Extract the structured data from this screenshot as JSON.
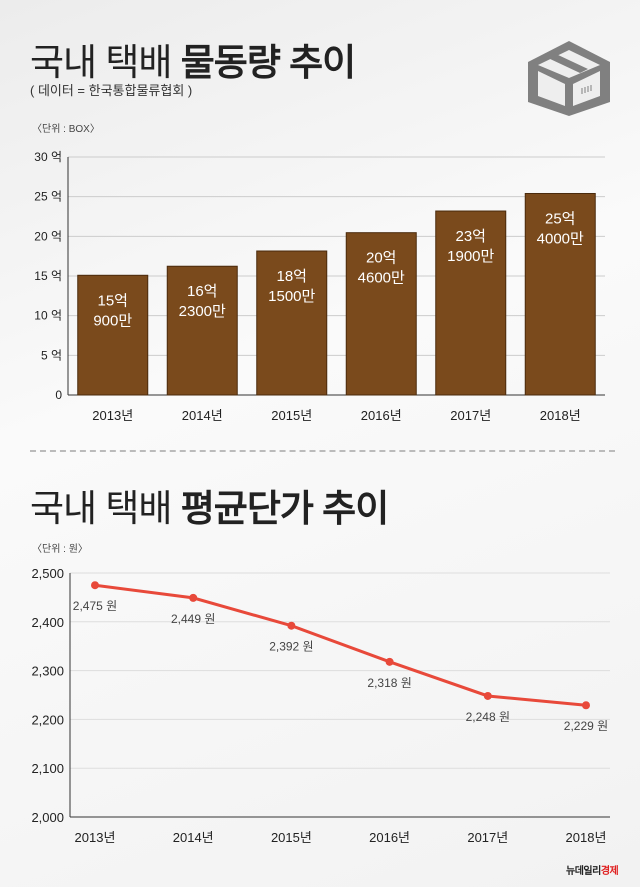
{
  "header": {
    "title_light": "국내 택배 ",
    "title_bold": "물동량 추이",
    "source": "( 데이터 = 한국통합물류협회 )"
  },
  "icon": "box-icon",
  "section2": {
    "title_light": "국내 택배 ",
    "title_bold": "평균단가 추이"
  },
  "logo": {
    "part1": "뉴데일리",
    "part2": "경제",
    "color2": "#e02020"
  },
  "chart_data": [
    {
      "type": "bar",
      "unit_label": "〈단위 : BOX〉",
      "categories": [
        "2013년",
        "2014년",
        "2015년",
        "2016년",
        "2017년",
        "2018년"
      ],
      "values": [
        1509000000,
        1623000000,
        1815000000,
        2046000000,
        2319000000,
        2540000000
      ],
      "data_labels": [
        [
          "15억",
          "900만"
        ],
        [
          "16억",
          "2300만"
        ],
        [
          "18억",
          "1500만"
        ],
        [
          "20억",
          "4600만"
        ],
        [
          "23억",
          "1900만"
        ],
        [
          "25억",
          "4000만"
        ]
      ],
      "yticks": [
        "0",
        "5 억",
        "10 억",
        "15 억",
        "20 억",
        "25 억",
        "30 억"
      ],
      "ylim": [
        0,
        3000000000
      ],
      "grid": true,
      "bar_color": "#7a4a1c"
    },
    {
      "type": "line",
      "unit_label": "〈단위 : 원〉",
      "categories": [
        "2013년",
        "2014년",
        "2015년",
        "2016년",
        "2017년",
        "2018년"
      ],
      "values": [
        2475,
        2449,
        2392,
        2318,
        2248,
        2229
      ],
      "data_labels": [
        "2,475 원",
        "2,449 원",
        "2,392 원",
        "2,318 원",
        "2,248 원",
        "2,229 원"
      ],
      "yticks": [
        "2,000",
        "2,100",
        "2,200",
        "2,300",
        "2,400",
        "2,500"
      ],
      "ylim": [
        2000,
        2500
      ],
      "grid": true,
      "line_color": "#e8493a"
    }
  ]
}
